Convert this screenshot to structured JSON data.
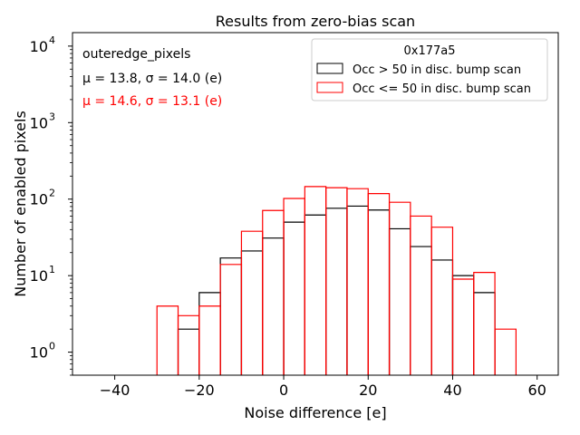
{
  "chart_data": {
    "type": "histogram",
    "title": "Results from zero-bias scan",
    "xlabel": "Noise difference [e]",
    "ylabel": "Number of enabled pixels",
    "xlim": [
      -50,
      65
    ],
    "ylim": [
      0.5,
      15000
    ],
    "yscale": "log",
    "bin_width": 5,
    "x_ticks": [
      -40,
      -20,
      0,
      20,
      40,
      60
    ],
    "x_tick_labels": [
      "−40",
      "−20",
      "0",
      "20",
      "40",
      "60"
    ],
    "y_ticks": [
      1,
      10,
      100,
      1000,
      10000
    ],
    "y_tick_base": "10",
    "y_tick_exponents": [
      "0",
      "1",
      "2",
      "3",
      "4"
    ],
    "annotations": [
      {
        "text": "outeredge_pixels",
        "color": "#000000"
      },
      {
        "text": "μ = 13.8, σ = 14.0 (e)",
        "color": "#000000"
      },
      {
        "text": "μ = 14.6, σ = 13.1 (e)",
        "color": "#ff0000"
      }
    ],
    "legend": {
      "title": "0x177a5",
      "placement": "top-right"
    },
    "series": [
      {
        "name": "Occ > 50 in disc. bump scan",
        "color": "#000000",
        "bin_edges": [
          -25,
          -20,
          -15,
          -10,
          -5,
          0,
          5,
          10,
          15,
          20,
          25,
          30,
          35,
          40,
          45,
          50
        ],
        "counts": [
          2,
          6,
          17,
          21,
          31,
          50,
          62,
          76,
          81,
          72,
          41,
          24,
          16,
          10,
          6
        ]
      },
      {
        "name": "Occ <= 50 in disc. bump scan",
        "color": "#ff0000",
        "bin_edges": [
          -30,
          -25,
          -20,
          -15,
          -10,
          -5,
          0,
          5,
          10,
          15,
          20,
          25,
          30,
          35,
          40,
          45,
          50,
          55
        ],
        "counts": [
          4,
          3,
          4,
          14,
          38,
          71,
          102,
          146,
          141,
          137,
          118,
          91,
          60,
          43,
          9,
          11,
          2
        ]
      }
    ]
  }
}
